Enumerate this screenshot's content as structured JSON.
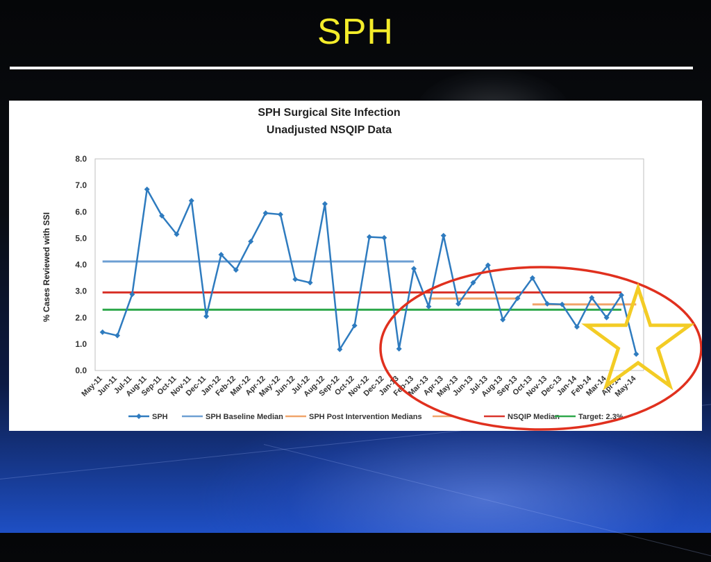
{
  "slide": {
    "title": "SPH"
  },
  "chart_data": {
    "type": "line",
    "title": "SPH Surgical Site Infection",
    "subtitle": "Unadjusted NSQIP Data",
    "xlabel": "",
    "ylabel": "% Cases Reviewed with SSI",
    "ylim": [
      0,
      8
    ],
    "yticks": [
      "0.0",
      "1.0",
      "2.0",
      "3.0",
      "4.0",
      "5.0",
      "6.0",
      "7.0",
      "8.0"
    ],
    "grid": false,
    "legend_position": "bottom",
    "categories": [
      "May-11",
      "Jun-11",
      "Jul-11",
      "Aug-11",
      "Sep-11",
      "Oct-11",
      "Nov-11",
      "Dec-11",
      "Jan-12",
      "Feb-12",
      "Mar-12",
      "Apr-12",
      "May-12",
      "Jun-12",
      "Jul-12",
      "Aug-12",
      "Sep-12",
      "Oct-12",
      "Nov-12",
      "Dec-12",
      "Jan-13",
      "Feb-13",
      "Mar-13",
      "Apr-13",
      "May-13",
      "Jun-13",
      "Jul-13",
      "Aug-13",
      "Sep-13",
      "Oct-13",
      "Nov-13",
      "Dec-13",
      "Jan-14",
      "Feb-14",
      "Mar-14",
      "Apr-14",
      "May-14"
    ],
    "series": [
      {
        "name": "SPH",
        "color": "#2e7bbf",
        "values": [
          1.45,
          1.32,
          2.88,
          6.85,
          5.85,
          5.15,
          6.42,
          2.05,
          4.38,
          3.8,
          4.88,
          5.95,
          5.9,
          3.45,
          3.32,
          6.3,
          0.8,
          1.7,
          5.05,
          5.02,
          0.82,
          3.85,
          2.42,
          5.1,
          2.52,
          3.32,
          3.98,
          1.92,
          2.73,
          3.5,
          2.52,
          2.5,
          1.65,
          2.75,
          2.0,
          2.85,
          0.62
        ]
      }
    ],
    "reference_lines": [
      {
        "name": "SPH Baseline Median",
        "color": "#6d9fd3",
        "value": 4.12,
        "from": "May-11",
        "to": "Feb-13"
      },
      {
        "name": "SPH Post Intervention Medians",
        "color": "#f0a46a",
        "value": 2.72,
        "from": "Mar-13",
        "to": "Sep-13"
      },
      {
        "name": "SPH Post Intervention Medians",
        "color": "#f0a46a",
        "value": 2.5,
        "from": "Oct-13",
        "to": "May-14"
      },
      {
        "name": "NSQIP Median",
        "color": "#d9342b",
        "value": 2.95,
        "from": "May-11",
        "to": "Apr-14"
      },
      {
        "name": "Target: 2.3%",
        "color": "#2ea84b",
        "value": 2.3,
        "from": "May-11",
        "to": "Apr-14"
      }
    ],
    "legend": [
      {
        "label": "SPH",
        "color": "#2e7bbf",
        "marker": true
      },
      {
        "label": "SPH Baseline Median",
        "color": "#6d9fd3",
        "marker": false
      },
      {
        "label": "SPH Post Intervention Medians",
        "color": "#f0a46a",
        "marker": false
      },
      {
        "label": "",
        "color": "#f0a46a",
        "marker": false
      },
      {
        "label": "NSQIP Median",
        "color": "#d9342b",
        "marker": false
      },
      {
        "label": "Target: 2.3%",
        "color": "#2ea84b",
        "marker": false
      }
    ],
    "annotations": [
      {
        "kind": "ellipse",
        "color": "#e0301e"
      },
      {
        "kind": "star",
        "color": "#f3cc25"
      }
    ]
  }
}
